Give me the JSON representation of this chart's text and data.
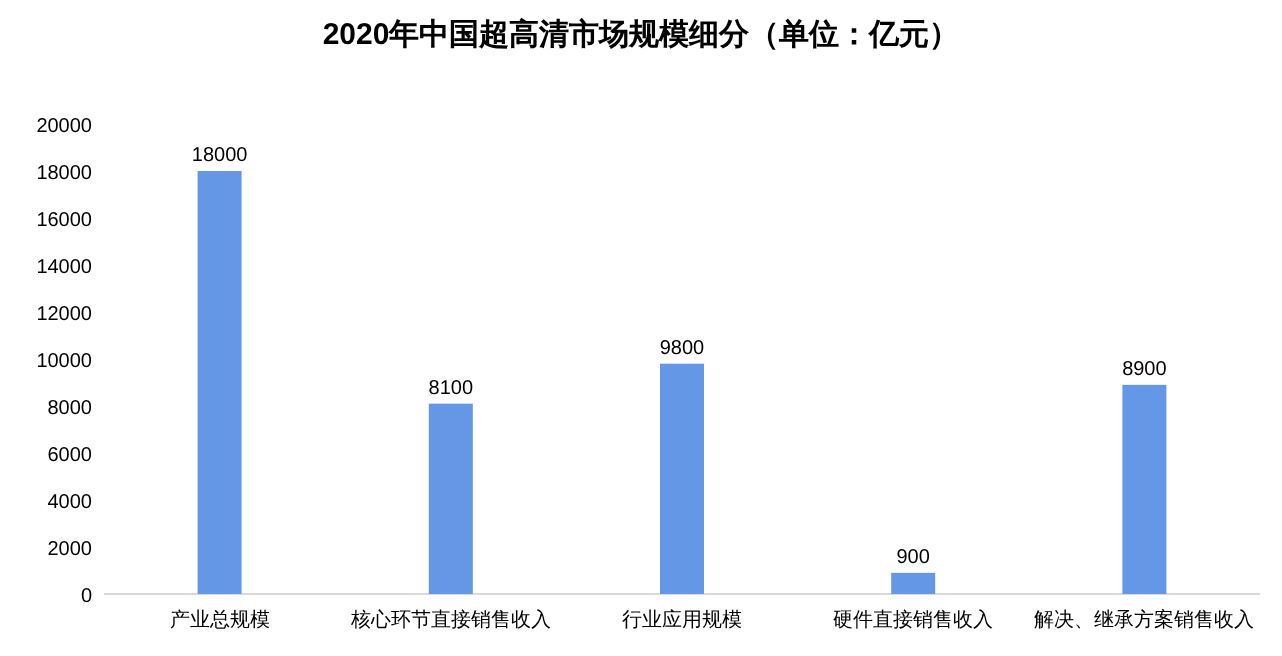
{
  "chart_data": {
    "type": "bar",
    "title": "2020年中国超高清市场规模细分（单位：亿元）",
    "categories": [
      "产业总规模",
      "核心环节直接销售收入",
      "行业应用规模",
      "硬件直接销售收入",
      "解决、继承方案销售收入"
    ],
    "values": [
      18000,
      8100,
      9800,
      900,
      8900
    ],
    "color": "#6497e6",
    "ylim": [
      0,
      20000
    ],
    "yticks": [
      0,
      2000,
      4000,
      6000,
      8000,
      10000,
      12000,
      14000,
      16000,
      18000,
      20000
    ],
    "data_labels": true
  }
}
